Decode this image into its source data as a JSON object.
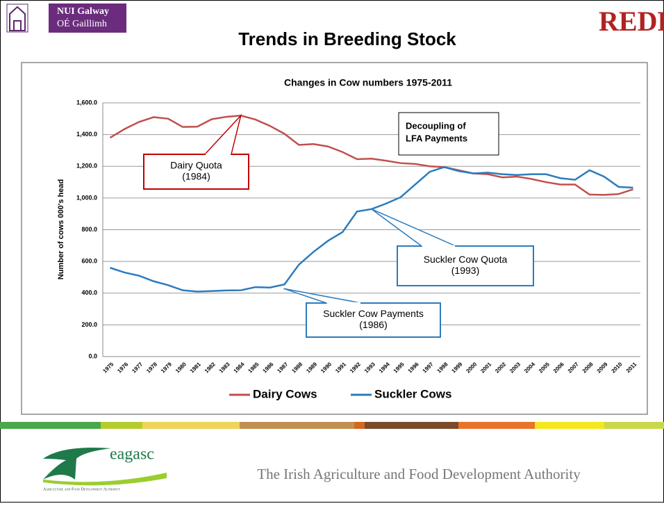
{
  "header": {
    "logo_line1": "NUI Galway",
    "logo_line2": "OÉ Gaillimh",
    "brand": "REDP",
    "title": "Trends in Breeding Stock"
  },
  "chart_data": {
    "type": "line",
    "title": "Changes in Cow numbers 1975-2011",
    "y_label": "Number of cows 000's head",
    "categories": [
      "1975",
      "1976",
      "1977",
      "1978",
      "1979",
      "1980",
      "1981",
      "1982",
      "1983",
      "1984",
      "1985",
      "1986",
      "1987",
      "1988",
      "1989",
      "1990",
      "1991",
      "1992",
      "1993",
      "1994",
      "1995",
      "1996",
      "1997",
      "1998",
      "1999",
      "2000",
      "2001",
      "2002",
      "2003",
      "2004",
      "2005",
      "2006",
      "2007",
      "2008",
      "2009",
      "2010",
      "2011"
    ],
    "series": [
      {
        "name": "Dairy Cows",
        "color": "#c0504d",
        "values": [
          1380,
          1435,
          1480,
          1510,
          1500,
          1448,
          1450,
          1497,
          1512,
          1520,
          1495,
          1455,
          1405,
          1335,
          1340,
          1325,
          1290,
          1245,
          1248,
          1235,
          1220,
          1215,
          1200,
          1195,
          1175,
          1155,
          1150,
          1130,
          1135,
          1120,
          1100,
          1085,
          1085,
          1022,
          1020,
          1025,
          1055
        ]
      },
      {
        "name": "Suckler Cows",
        "color": "#2b7bbd",
        "values": [
          560,
          530,
          510,
          475,
          450,
          418,
          410,
          413,
          417,
          418,
          438,
          435,
          455,
          580,
          660,
          730,
          785,
          915,
          930,
          965,
          1005,
          1085,
          1165,
          1195,
          1170,
          1155,
          1160,
          1150,
          1145,
          1150,
          1150,
          1125,
          1115,
          1175,
          1135,
          1070,
          1065
        ]
      }
    ],
    "ylim": [
      0,
      1600
    ],
    "yticks": [
      {
        "value": 0,
        "label": "0.0"
      },
      {
        "value": 200,
        "label": "200.0"
      },
      {
        "value": 400,
        "label": "400.0"
      },
      {
        "value": 600,
        "label": "600.0"
      },
      {
        "value": 800,
        "label": "800.0"
      },
      {
        "value": 1000,
        "label": "1,000.0"
      },
      {
        "value": 1200,
        "label": "1,200.0"
      },
      {
        "value": 1400,
        "label": "1,400.0"
      },
      {
        "value": 1600,
        "label": "1,600.0"
      }
    ],
    "grid": true,
    "legend": "bottom",
    "annotations": [
      {
        "lines": [
          "Dairy Quota",
          "(1984)"
        ]
      },
      {
        "lines": [
          "Suckler Cow Quota",
          "(1993)"
        ]
      },
      {
        "lines": [
          "Suckler Cow Payments",
          "(1986)"
        ]
      },
      {
        "lines": [
          "Decoupling of",
          "LFA Payments"
        ]
      }
    ]
  },
  "footer": {
    "logo_text": "eagasc",
    "logo_subtitle": "Agriculture and Food Development Authority",
    "tagline": "The Irish Agriculture and Food Development Authority"
  }
}
